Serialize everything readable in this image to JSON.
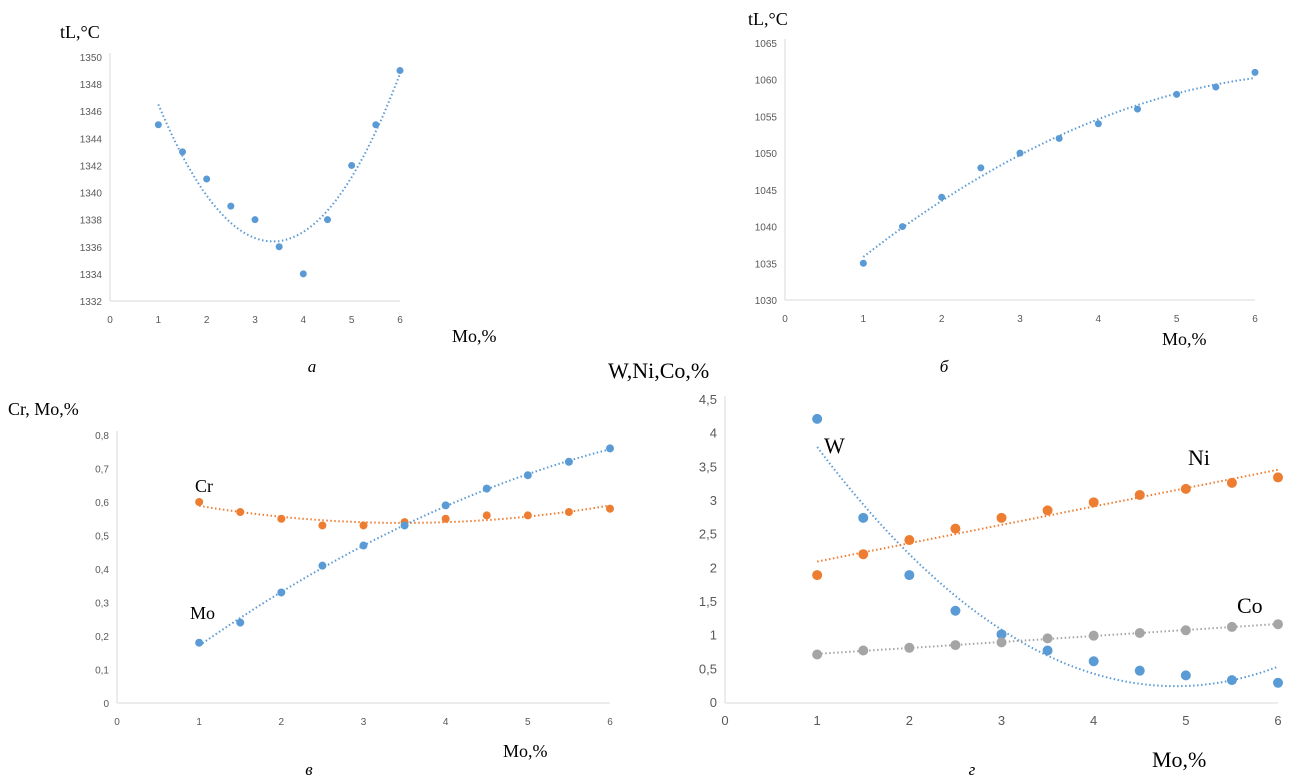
{
  "colors": {
    "blue": "#5b9bd5",
    "orange": "#ed7d31",
    "gray": "#a5a5a5"
  },
  "chart_data": [
    {
      "type": "scatter",
      "caption": "а",
      "xlabel": "Mo,%",
      "ylabel": "tL,°C",
      "xlim": [
        0,
        6
      ],
      "ylim": [
        1332,
        1350
      ],
      "xticks": [
        0,
        1,
        2,
        3,
        4,
        5,
        6
      ],
      "yticks": [
        1332,
        1334,
        1336,
        1338,
        1340,
        1342,
        1344,
        1346,
        1348,
        1350
      ],
      "series": [
        {
          "color": "blue",
          "trend": "poly2",
          "label": "",
          "x": [
            1,
            1.5,
            2,
            2.5,
            3,
            3.5,
            4,
            4.5,
            5,
            5.5,
            6
          ],
          "y": [
            1345,
            1343,
            1341,
            1339,
            1338,
            1336,
            1334,
            1338,
            1342,
            1345,
            1349
          ]
        }
      ]
    },
    {
      "type": "scatter",
      "caption": "б",
      "xlabel": "Mo,%",
      "ylabel": "tL,°C",
      "xlim": [
        0,
        6
      ],
      "ylim": [
        1030,
        1065
      ],
      "xticks": [
        0,
        1,
        2,
        3,
        4,
        5,
        6
      ],
      "yticks": [
        1030,
        1035,
        1040,
        1045,
        1050,
        1055,
        1060,
        1065
      ],
      "series": [
        {
          "color": "blue",
          "trend": "poly2",
          "label": "",
          "x": [
            1,
            1.5,
            2,
            2.5,
            3,
            3.5,
            4,
            4.5,
            5,
            5.5,
            6
          ],
          "y": [
            1035,
            1040,
            1044,
            1048,
            1050,
            1052,
            1054,
            1056,
            1058,
            1059,
            1061
          ]
        }
      ]
    },
    {
      "type": "scatter",
      "caption": "в",
      "xlabel": "Mo,%",
      "ylabel": "Cr, Mo,%",
      "xlim": [
        0,
        6
      ],
      "ylim": [
        0,
        0.8
      ],
      "xticks": [
        0,
        1,
        2,
        3,
        4,
        5,
        6
      ],
      "yticks": [
        "0",
        "0,1",
        "0,2",
        "0,3",
        "0,4",
        "0,5",
        "0,6",
        "0,7",
        "0,8"
      ],
      "series": [
        {
          "color": "orange",
          "trend": "poly2",
          "label": "Cr",
          "x": [
            1,
            1.5,
            2,
            2.5,
            3,
            3.5,
            4,
            4.5,
            5,
            5.5,
            6
          ],
          "y": [
            0.6,
            0.57,
            0.55,
            0.53,
            0.53,
            0.54,
            0.55,
            0.56,
            0.56,
            0.57,
            0.58
          ]
        },
        {
          "color": "blue",
          "trend": "poly2",
          "label": "Mo",
          "x": [
            1,
            1.5,
            2,
            2.5,
            3,
            3.5,
            4,
            4.5,
            5,
            5.5,
            6
          ],
          "y": [
            0.18,
            0.24,
            0.33,
            0.41,
            0.47,
            0.53,
            0.59,
            0.64,
            0.68,
            0.72,
            0.76
          ]
        }
      ]
    },
    {
      "type": "scatter",
      "caption": "г",
      "xlabel": "Mo,%",
      "ylabel": "W,Ni,Co,%",
      "xlim": [
        0,
        6
      ],
      "ylim": [
        0,
        4.5
      ],
      "xticks": [
        0,
        1,
        2,
        3,
        4,
        5,
        6
      ],
      "yticks": [
        "0",
        "0,5",
        "1",
        "1,5",
        "2",
        "2,5",
        "3",
        "3,5",
        "4",
        "4,5"
      ],
      "series": [
        {
          "color": "blue",
          "trend": "poly2",
          "label": "W",
          "x": [
            1,
            1.5,
            2,
            2.5,
            3,
            3.5,
            4,
            4.5,
            5,
            5.5,
            6
          ],
          "y": [
            4.22,
            2.75,
            1.9,
            1.37,
            1.02,
            0.78,
            0.62,
            0.48,
            0.41,
            0.34,
            0.3
          ]
        },
        {
          "color": "orange",
          "trend": "linear",
          "label": "Ni",
          "x": [
            1,
            1.5,
            2,
            2.5,
            3,
            3.5,
            4,
            4.5,
            5,
            5.5,
            6
          ],
          "y": [
            1.9,
            2.21,
            2.42,
            2.59,
            2.75,
            2.86,
            2.98,
            3.09,
            3.18,
            3.27,
            3.35
          ]
        },
        {
          "color": "gray",
          "trend": "linear",
          "label": "Co",
          "x": [
            1,
            1.5,
            2,
            2.5,
            3,
            3.5,
            4,
            4.5,
            5,
            5.5,
            6
          ],
          "y": [
            0.72,
            0.78,
            0.82,
            0.86,
            0.9,
            0.96,
            1.0,
            1.04,
            1.08,
            1.13,
            1.17
          ]
        }
      ]
    }
  ]
}
